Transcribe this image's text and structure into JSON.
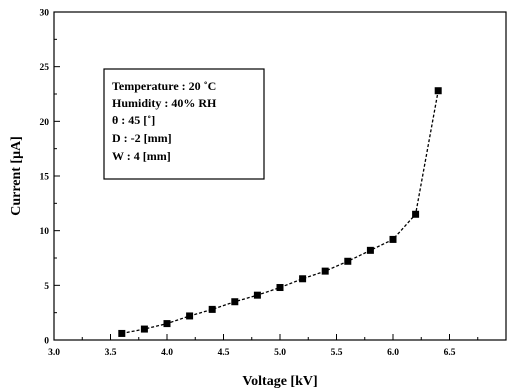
{
  "chart_data": {
    "type": "line",
    "xlabel": "Voltage [kV]",
    "ylabel": "Current [μA]",
    "xlim": [
      3.0,
      7.0
    ],
    "ylim": [
      0,
      30
    ],
    "x_ticks": [
      "3.0",
      "3.5",
      "4.0",
      "4.5",
      "5.0",
      "5.5",
      "6.0",
      "6.5"
    ],
    "y_ticks": [
      "0",
      "5",
      "10",
      "15",
      "20",
      "25",
      "30"
    ],
    "grid": false,
    "legend_box": [
      "Temperature : 20 ˚C",
      "Humidity : 40% RH",
      "θ : 45 [˚]",
      "D : -2 [mm]",
      "W :  4 [mm]"
    ],
    "series": [
      {
        "x": [
          3.6,
          3.8,
          4.0,
          4.2,
          4.4,
          4.6,
          4.8,
          5.0,
          5.2,
          5.4,
          5.6,
          5.8,
          6.0,
          6.2,
          6.4
        ],
        "y": [
          0.6,
          1.0,
          1.5,
          2.2,
          2.8,
          3.5,
          4.1,
          4.8,
          5.6,
          6.3,
          7.2,
          8.2,
          9.2,
          11.5,
          22.8
        ],
        "color": "#000000"
      }
    ]
  }
}
